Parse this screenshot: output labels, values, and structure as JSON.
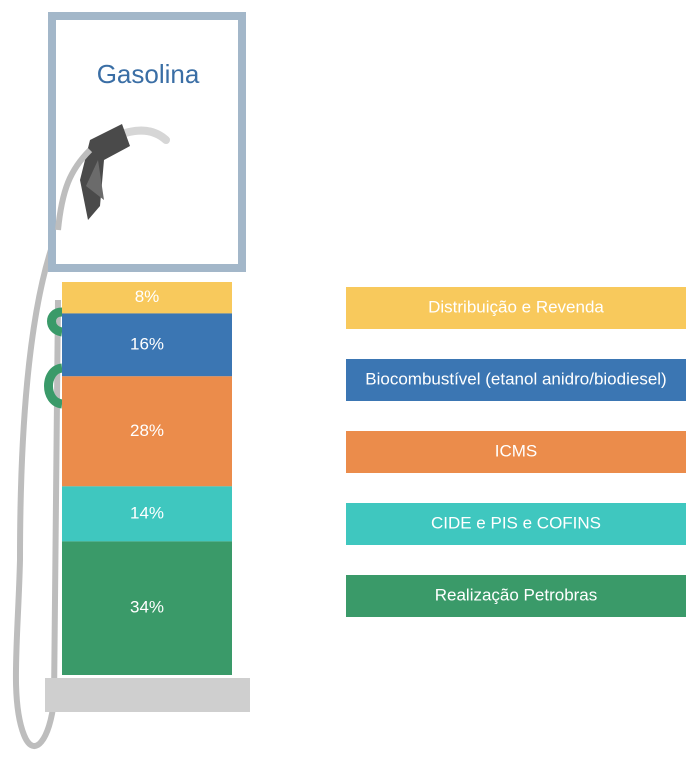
{
  "chart_data": {
    "type": "stacked-bar",
    "title": "Gasolina",
    "categories": [
      "Distribuição e Revenda",
      "Biocombustível (etanol anidro/biodiesel)",
      "ICMS",
      "CIDE e PIS e COFINS",
      "Realização Petrobras"
    ],
    "values": [
      8,
      16,
      28,
      14,
      34
    ],
    "value_labels": [
      "8%",
      "16%",
      "28%",
      "14%",
      "34%"
    ],
    "colors": [
      "#f8c95c",
      "#3b76b3",
      "#eb8c4b",
      "#3fc7bf",
      "#3a9a69"
    ]
  }
}
